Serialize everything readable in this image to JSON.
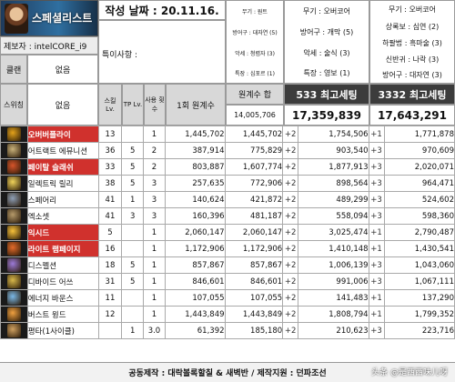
{
  "banner": {
    "title": "스페셜리스트"
  },
  "header": {
    "date_label": "작성 날짜 : 20.11.16.",
    "server_label": "제보자 : intelCORE_i9",
    "clan_label": "클랜",
    "clan_value": "없음",
    "remarks_label": "특이사항 :"
  },
  "equip_col1": [
    "무기 : 원트",
    "방어구 : 대자연 (5)",
    "악세 : 청렴자 (3)",
    "특장 : 심포르 (1)"
  ],
  "equip_col2": [
    "무기 : 오버코어",
    "방어구 : 개막 (5)",
    "악세 : 술식 (3)",
    "특장 : 영보 (1)"
  ],
  "equip_col3": [
    "무기 : 오버코어",
    "상록보 : 심연 (2)",
    "하팔법 : 흑마술 (3)",
    "신반귀 : 나락 (3)",
    "방어구 : 대자연 (3)"
  ],
  "summary": {
    "left_label": "스위칭",
    "left_value": "없음",
    "h1": "스킬 Lv.",
    "h2": "TP Lv.",
    "h3": "사용 횟수",
    "h4": "1회 원계수",
    "base_label": "원계수 합",
    "base_total": "14,005,706",
    "s533_label": "533 최고세팅",
    "s533_total": "17,359,839",
    "s3332_label": "3332 최고세팅",
    "s3332_total": "17,643,291"
  },
  "colors": {
    "highlight": "#d0312d",
    "dark_header": "#3c3c3c",
    "gray_header": "#d8d8d8"
  },
  "skills": [
    {
      "icon": "flame-gear-icon",
      "name": "오버버플라이",
      "lv": "13",
      "tp": "",
      "uses": "1",
      "coef": "1,445,702",
      "sum": "1,445,702",
      "d1": "+2",
      "s533": "1,754,506",
      "d2": "+1",
      "s3332": "1,771,878",
      "hl": true
    },
    {
      "icon": "drill-icon",
      "name": "어트랙트 에뮤니션",
      "lv": "36",
      "tp": "5",
      "uses": "2",
      "coef": "387,914",
      "sum": "775,829",
      "d1": "+2",
      "s533": "903,540",
      "d2": "+3",
      "s3332": "970,609",
      "hl": false
    },
    {
      "icon": "slash-icon",
      "name": "페이탈 슬래쉬",
      "lv": "33",
      "tp": "5",
      "uses": "2",
      "coef": "803,887",
      "sum": "1,607,774",
      "d1": "+2",
      "s533": "1,877,913",
      "d2": "+3",
      "s3332": "2,020,071",
      "hl": true
    },
    {
      "icon": "blade-icon",
      "name": "일렉트릭 릴리",
      "lv": "38",
      "tp": "5",
      "uses": "3",
      "coef": "257,635",
      "sum": "772,906",
      "d1": "+2",
      "s533": "898,564",
      "d2": "+3",
      "s3332": "964,471",
      "hl": false
    },
    {
      "icon": "spear-icon",
      "name": "스페어리",
      "lv": "41",
      "tp": "1",
      "uses": "3",
      "coef": "140,624",
      "sum": "421,872",
      "d1": "+2",
      "s533": "489,299",
      "d2": "+3",
      "s3332": "524,602",
      "hl": false
    },
    {
      "icon": "axe-icon",
      "name": "엑소셋",
      "lv": "41",
      "tp": "3",
      "uses": "3",
      "coef": "160,396",
      "sum": "481,187",
      "d1": "+2",
      "s533": "558,094",
      "d2": "+3",
      "s3332": "598,360",
      "hl": false
    },
    {
      "icon": "burst-icon",
      "name": "익시드",
      "lv": "5",
      "tp": "",
      "uses": "1",
      "coef": "2,060,147",
      "sum": "2,060,147",
      "d1": "+2",
      "s533": "3,025,474",
      "d2": "+1",
      "s3332": "2,790,487",
      "hl": true
    },
    {
      "icon": "ring-icon",
      "name": "라이트 램페이지",
      "lv": "16",
      "tp": "",
      "uses": "1",
      "coef": "1,172,906",
      "sum": "1,172,906",
      "d1": "+2",
      "s533": "1,410,148",
      "d2": "+1",
      "s3332": "1,430,541",
      "hl": true
    },
    {
      "icon": "dagger-icon",
      "name": "디스펠션",
      "lv": "18",
      "tp": "5",
      "uses": "1",
      "coef": "857,867",
      "sum": "857,867",
      "d1": "+2",
      "s533": "1,006,139",
      "d2": "+3",
      "s3332": "1,043,060",
      "hl": false
    },
    {
      "icon": "bolt-icon",
      "name": "디바이드 어쓰",
      "lv": "31",
      "tp": "5",
      "uses": "1",
      "coef": "846,601",
      "sum": "846,601",
      "d1": "+2",
      "s533": "991,006",
      "d2": "+3",
      "s3332": "1,067,111",
      "hl": false
    },
    {
      "icon": "orb-icon",
      "name": "에너지 바운스",
      "lv": "11",
      "tp": "",
      "uses": "1",
      "coef": "107,055",
      "sum": "107,055",
      "d1": "+2",
      "s533": "141,483",
      "d2": "+1",
      "s3332": "137,290",
      "hl": false
    },
    {
      "icon": "wing-icon",
      "name": "버스트 윙드",
      "lv": "12",
      "tp": "",
      "uses": "1",
      "coef": "1,443,849",
      "sum": "1,443,849",
      "d1": "+2",
      "s533": "1,808,794",
      "d2": "+1",
      "s3332": "1,799,352",
      "hl": false
    },
    {
      "icon": "fist-icon",
      "name": "평타(1사이클)",
      "lv": "",
      "tp": "1",
      "uses": "3.0",
      "coef": "61,392",
      "sum": "185,180",
      "d1": "+2",
      "s533": "210,623",
      "d2": "+3",
      "s3332": "223,716",
      "hl": false
    }
  ],
  "footer": {
    "text": "공동제작 : 대락볼록할칠 & 새벽반 / 제작지원 : 던파조선",
    "watermark": "头条 @是西西味儿呀"
  }
}
